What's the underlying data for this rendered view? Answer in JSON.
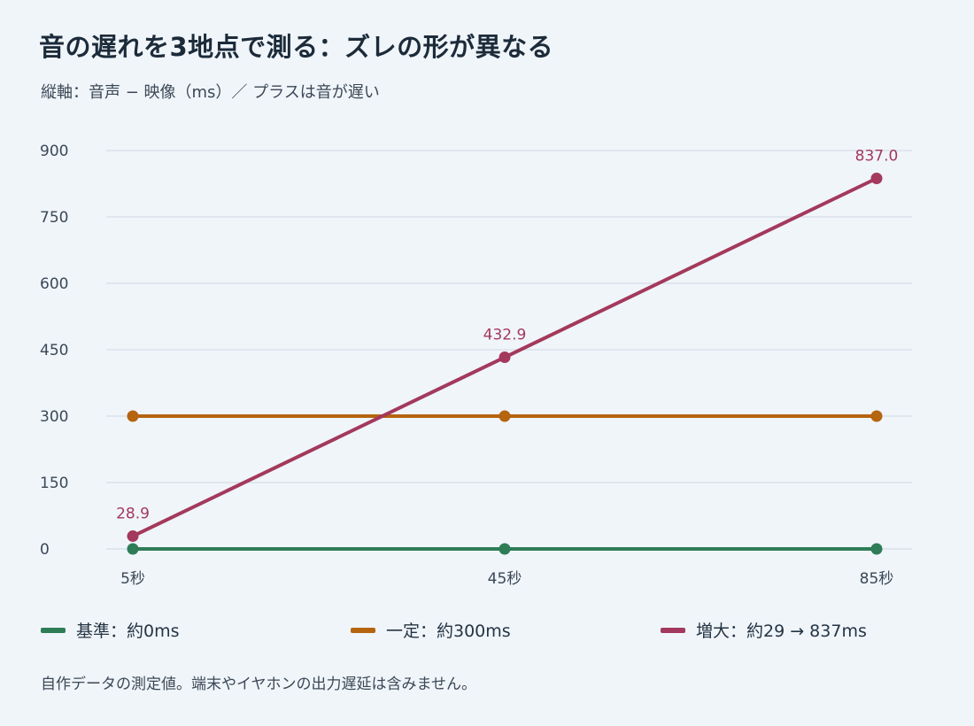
{
  "title": "音の遅れを3地点で測る：ズレの形が異なる",
  "subtitle": "縦軸：音声 − 映像（ms）／ プラスは音が遅い",
  "footnote": "自作データの測定値。端末やイヤホンの出力遅延は含みません。",
  "chart_data": {
    "type": "line",
    "title": "音の遅れを3地点で測る：ズレの形が異なる",
    "ylabel": "縦軸：音声 − 映像（ms）／ プラスは音が遅い",
    "categories": [
      "5秒",
      "45秒",
      "85秒"
    ],
    "ylim": [
      0,
      900
    ],
    "yticks": [
      0,
      150,
      300,
      450,
      600,
      750,
      900
    ],
    "grid": true,
    "legend_position": "bottom",
    "series": [
      {
        "name": "基準：約0ms",
        "color": "#2e7d57",
        "values": [
          0,
          0,
          0
        ],
        "labels": [
          "",
          "",
          ""
        ]
      },
      {
        "name": "一定：約300ms",
        "color": "#b5640f",
        "values": [
          300,
          300,
          300
        ],
        "labels": [
          "",
          "",
          ""
        ]
      },
      {
        "name": "増大：約29 → 837ms",
        "color": "#a3395c",
        "values": [
          28.9,
          432.9,
          837.0
        ],
        "labels": [
          "28.9",
          "432.9",
          "837.0"
        ]
      }
    ]
  }
}
